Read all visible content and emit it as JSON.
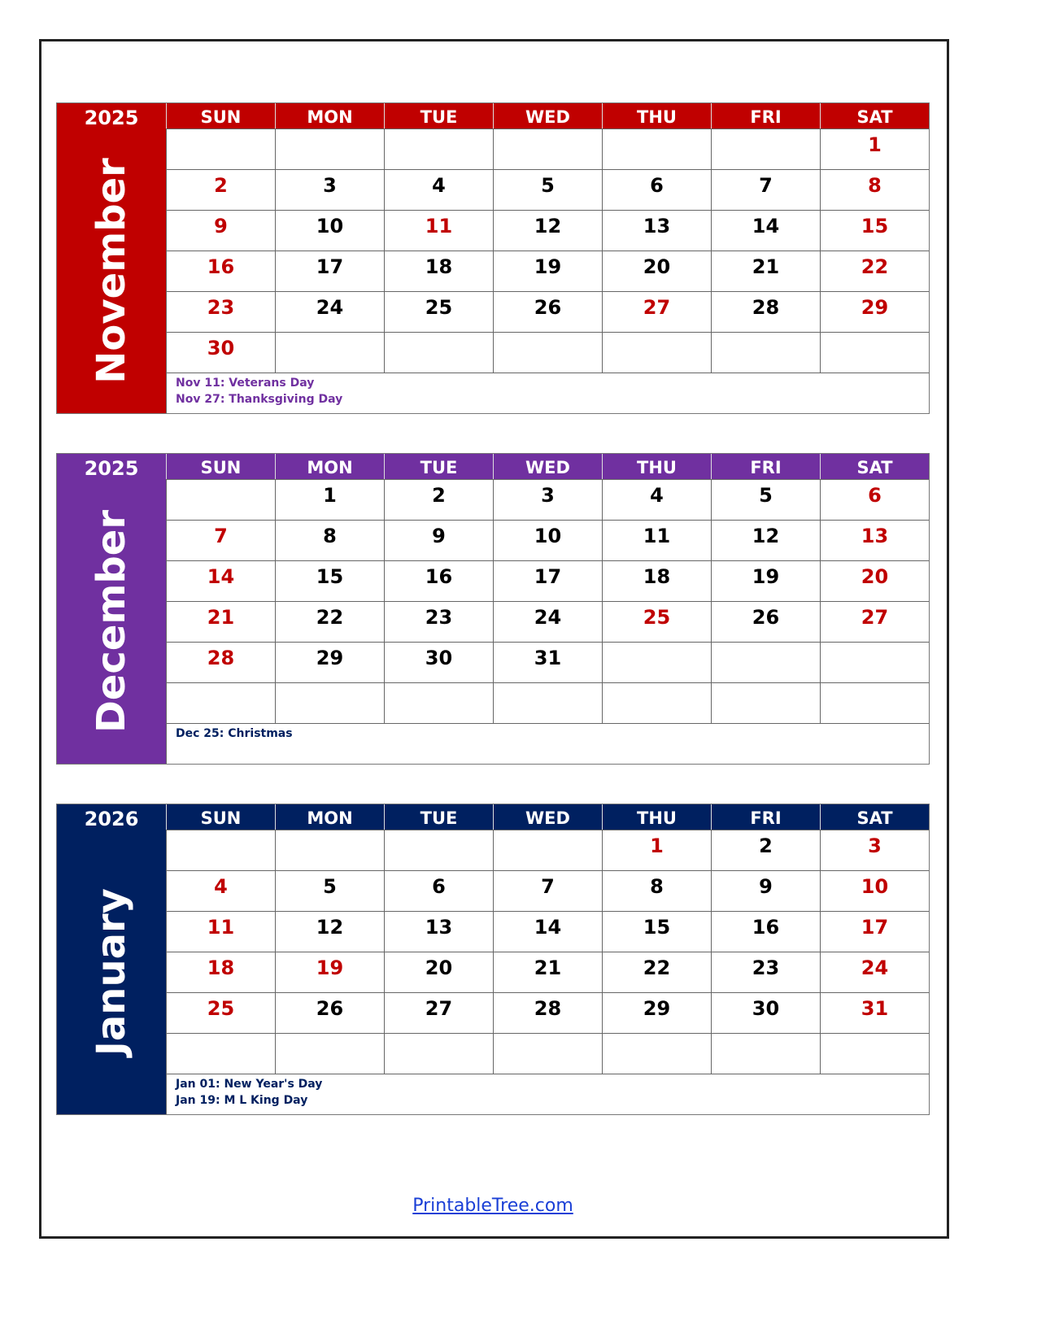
{
  "weekdays": [
    "SUN",
    "MON",
    "TUE",
    "WED",
    "THU",
    "FRI",
    "SAT"
  ],
  "colors": {
    "weekday": "#000000",
    "holiday_weekend": "#c00000"
  },
  "calendars": [
    {
      "year": "2025",
      "month": "November",
      "color": "#c00000",
      "notes_color": "#7030a0",
      "start": 6,
      "days": 30,
      "red_days": [
        11,
        27
      ],
      "notes": [
        "Nov 11: Veterans Day",
        "Nov 27: Thanksgiving Day"
      ]
    },
    {
      "year": "2025",
      "month": "December",
      "color": "#7030a0",
      "notes_color": "#002060",
      "start": 1,
      "days": 31,
      "red_days": [
        25
      ],
      "notes": [
        "Dec 25: Christmas"
      ]
    },
    {
      "year": "2026",
      "month": "January",
      "color": "#002060",
      "notes_color": "#002060",
      "start": 4,
      "days": 31,
      "red_days": [
        1,
        19
      ],
      "notes": [
        "Jan 01: New Year's Day",
        "Jan 19: M L King Day"
      ]
    }
  ],
  "footer": "PrintableTree.com"
}
